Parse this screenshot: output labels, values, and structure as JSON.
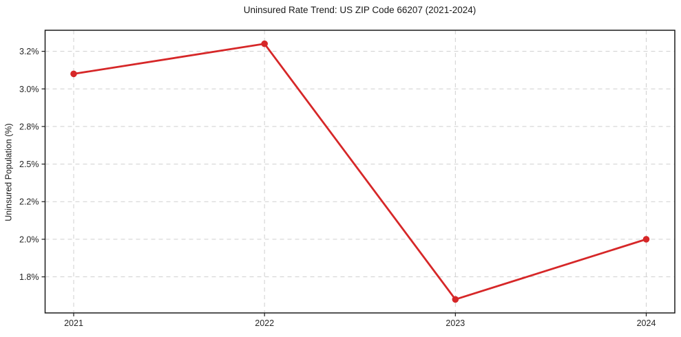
{
  "figure": {
    "title": "Uninsured Rate Trend: US ZIP Code 66207 (2021-2024)",
    "background": "#ffffff"
  },
  "chart_data": {
    "type": "line",
    "title": "Uninsured Rate Trend: US ZIP Code 66207 (2021-2024)",
    "xlabel": "",
    "ylabel": "Uninsured Population (%)",
    "categories": [
      "2021",
      "2022",
      "2023",
      "2024"
    ],
    "series": [
      {
        "name": "Uninsured rate",
        "values": [
          3.1,
          3.3,
          1.6,
          2.0
        ]
      }
    ],
    "ylim": [
      1.51,
      3.39
    ],
    "y_ticks": [
      {
        "value": 3.25,
        "label": "3.2%"
      },
      {
        "value": 3.0,
        "label": "3.0%"
      },
      {
        "value": 2.75,
        "label": "2.8%"
      },
      {
        "value": 2.5,
        "label": "2.5%"
      },
      {
        "value": 2.25,
        "label": "2.2%"
      },
      {
        "value": 2.0,
        "label": "2.0%"
      },
      {
        "value": 1.75,
        "label": "1.8%"
      }
    ],
    "grid": true,
    "grid_style": "dashed",
    "legend_position": "none",
    "line_color": "#d62728",
    "marker": "circle"
  },
  "style": {
    "grid_color": "#cfcfcf",
    "axis_color": "#1a1a1a",
    "text_color": "#262626",
    "plot_background": "#ffffff"
  }
}
